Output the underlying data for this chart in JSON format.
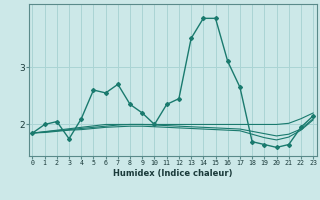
{
  "xlabel": "Humidex (Indice chaleur)",
  "x": [
    0,
    1,
    2,
    3,
    4,
    5,
    6,
    7,
    8,
    9,
    10,
    11,
    12,
    13,
    14,
    15,
    16,
    17,
    18,
    19,
    20,
    21,
    22,
    23
  ],
  "main_line": [
    1.85,
    2.0,
    2.05,
    1.75,
    2.1,
    2.6,
    2.55,
    2.7,
    2.35,
    2.2,
    2.0,
    2.35,
    2.45,
    3.5,
    3.85,
    3.85,
    3.1,
    2.65,
    1.7,
    1.65,
    1.6,
    1.65,
    1.95,
    2.15
  ],
  "linear_line1": [
    1.85,
    1.875,
    1.9,
    1.925,
    1.95,
    1.975,
    2.0,
    2.0,
    2.0,
    2.0,
    2.0,
    2.0,
    2.0,
    2.0,
    2.0,
    2.0,
    2.0,
    2.0,
    2.0,
    2.0,
    2.0,
    2.02,
    2.1,
    2.2
  ],
  "linear_line2": [
    1.85,
    1.87,
    1.89,
    1.91,
    1.93,
    1.95,
    1.97,
    1.99,
    2.0,
    2.0,
    1.99,
    1.98,
    1.97,
    1.96,
    1.95,
    1.94,
    1.93,
    1.92,
    1.88,
    1.84,
    1.8,
    1.83,
    1.92,
    2.1
  ],
  "linear_line3": [
    1.85,
    1.86,
    1.88,
    1.9,
    1.91,
    1.93,
    1.95,
    1.96,
    1.97,
    1.97,
    1.96,
    1.95,
    1.94,
    1.93,
    1.92,
    1.91,
    1.9,
    1.89,
    1.83,
    1.77,
    1.73,
    1.78,
    1.9,
    2.08
  ],
  "bg_color": "#cce8e8",
  "line_color": "#1a7a6e",
  "grid_color": "#aad4d4",
  "ylim": [
    1.45,
    4.1
  ],
  "yticks": [
    2,
    3
  ],
  "xlim": [
    -0.3,
    23.3
  ]
}
